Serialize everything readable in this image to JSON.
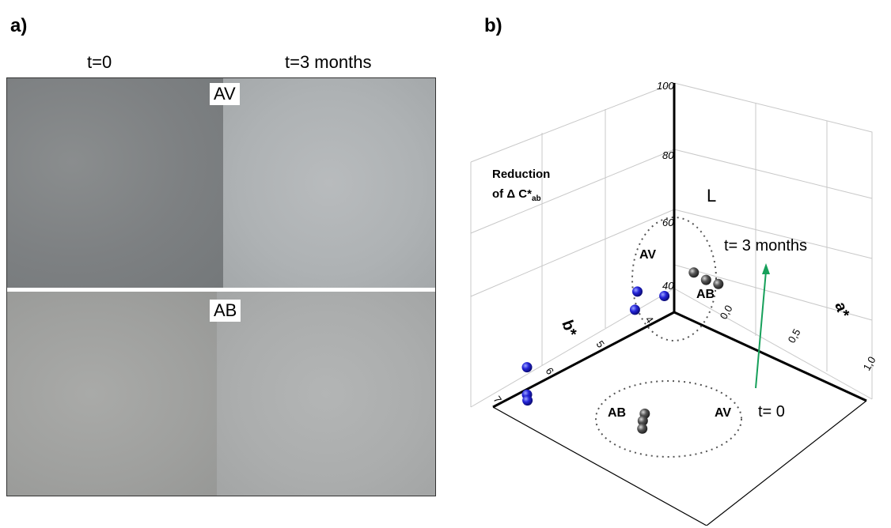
{
  "panel_a": {
    "label": "a)",
    "col_left": "t=0",
    "col_right": "t=3 months",
    "tag_top": "AV",
    "tag_bottom": "AB"
  },
  "panel_b": {
    "label": "b)",
    "note_line1": "Reduction",
    "note_line2": "of  Δ C*",
    "note_sub": "ab",
    "t_later": "t=  3 months",
    "t_initial": "t= 0",
    "group_av": "AV",
    "group_ab": "AB",
    "group_av2": "AV",
    "group_ab2": "AB"
  },
  "chart_data": {
    "type": "scatter",
    "title": "",
    "axes": {
      "L": {
        "label": "L",
        "ticks": [
          "40",
          "60",
          "80",
          "100"
        ]
      },
      "a": {
        "label": "a*",
        "ticks": [
          "0,0",
          "0,5",
          "1,0"
        ]
      },
      "b": {
        "label": "b*",
        "ticks": [
          "4",
          "5",
          "6",
          "7"
        ]
      }
    },
    "series": [
      {
        "name": "AV",
        "color": "#3a3a3a",
        "points": [
          {
            "L": 58,
            "a": 0.2,
            "b": 4.2
          },
          {
            "L": 56,
            "a": 0.25,
            "b": 4.1
          },
          {
            "L": 55,
            "a": 0.3,
            "b": 4.0
          },
          {
            "L": 40,
            "a": 0.6,
            "b": 6.4
          },
          {
            "L": 39,
            "a": 0.62,
            "b": 6.5
          },
          {
            "L": 38,
            "a": 0.65,
            "b": 6.6
          }
        ]
      },
      {
        "name": "AB",
        "color": "#1c1ccf",
        "points": [
          {
            "L": 51,
            "a": 0.1,
            "b": 4.5
          },
          {
            "L": 50,
            "a": -0.05,
            "b": 4.6
          },
          {
            "L": 47,
            "a": 0.0,
            "b": 4.8
          },
          {
            "L": 42,
            "a": -0.1,
            "b": 6.7
          },
          {
            "L": 38,
            "a": 0.0,
            "b": 7.0
          },
          {
            "L": 37,
            "a": 0.02,
            "b": 7.05
          }
        ]
      }
    ]
  }
}
